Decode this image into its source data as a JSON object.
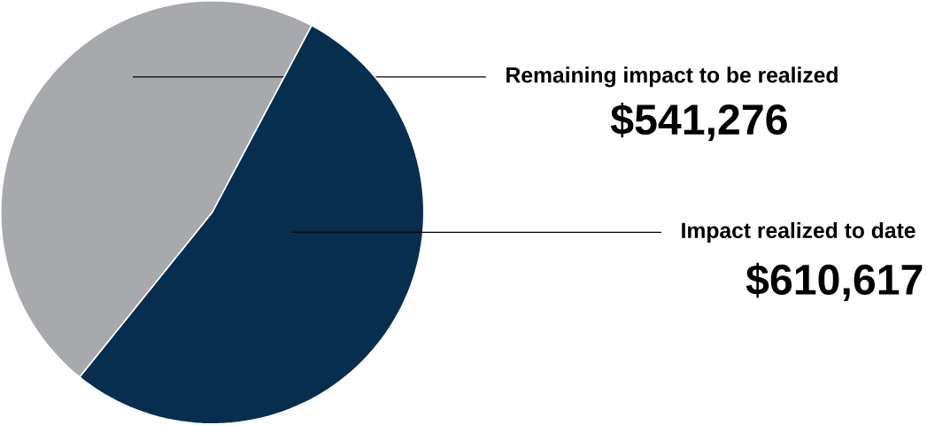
{
  "chart_data": {
    "type": "pie",
    "categories": [
      "Remaining impact to be realized",
      "Impact realized to date"
    ],
    "values": [
      541276,
      610617
    ],
    "colors": [
      "#a7a9ac",
      "#062e4f"
    ],
    "value_labels": [
      "$541,276",
      "$610,617"
    ]
  }
}
